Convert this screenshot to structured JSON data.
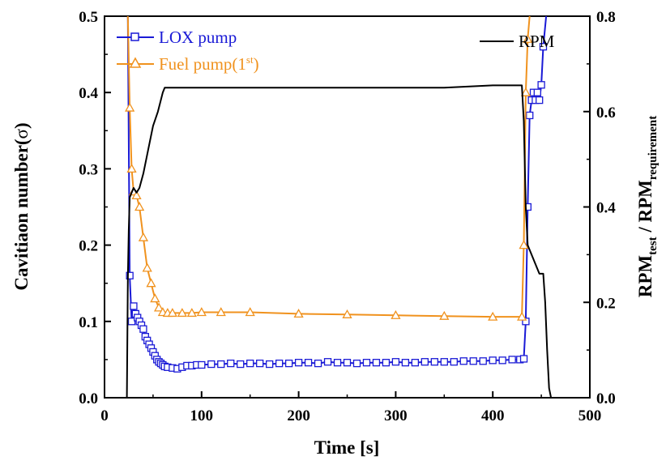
{
  "chart_data": {
    "type": "line",
    "x_axis": {
      "label": "Time [s]",
      "range": [
        0,
        500
      ],
      "ticks": [
        0,
        100,
        200,
        300,
        400,
        500
      ]
    },
    "y_left": {
      "label_main": "Cavitiaon number(",
      "label_symbol": "σ",
      "label_close": ")",
      "range": [
        0,
        0.5
      ],
      "ticks": [
        "0.0",
        "0.1",
        "0.2",
        "0.3",
        "0.4",
        "0.5"
      ]
    },
    "y_right": {
      "label_a": "RPM",
      "label_a_sub": "test",
      "label_sep": " / RPM",
      "label_b_sub": "requirement",
      "range": [
        0,
        0.8
      ],
      "ticks": [
        "0.0",
        "0.2",
        "0.4",
        "0.6",
        "0.8"
      ]
    },
    "legend": {
      "lox": "LOX pump",
      "fuel": "Fuel pump(1",
      "fuel_sup": "st",
      "fuel_close": ")",
      "rpm": "RPM"
    },
    "colors": {
      "lox": "#1a1ad6",
      "fuel": "#f0921e",
      "rpm": "#000000"
    },
    "series": [
      {
        "name": "LOX pump",
        "axis": "left",
        "marker": "square",
        "x": [
          24,
          26,
          28,
          30,
          32,
          34,
          36,
          38,
          40,
          42,
          44,
          46,
          48,
          50,
          52,
          54,
          56,
          58,
          60,
          62,
          65,
          70,
          75,
          80,
          85,
          90,
          95,
          100,
          110,
          120,
          130,
          140,
          150,
          160,
          170,
          180,
          190,
          200,
          210,
          220,
          230,
          240,
          250,
          260,
          270,
          280,
          290,
          300,
          310,
          320,
          330,
          340,
          350,
          360,
          370,
          380,
          390,
          400,
          410,
          420,
          428,
          432,
          434,
          436,
          438,
          440,
          442,
          444,
          446,
          448,
          450,
          452,
          455
        ],
        "y": [
          0.5,
          0.16,
          0.1,
          0.12,
          0.11,
          0.105,
          0.1,
          0.095,
          0.09,
          0.08,
          0.075,
          0.07,
          0.065,
          0.06,
          0.055,
          0.05,
          0.047,
          0.045,
          0.043,
          0.041,
          0.04,
          0.039,
          0.038,
          0.04,
          0.042,
          0.042,
          0.043,
          0.043,
          0.044,
          0.044,
          0.045,
          0.044,
          0.045,
          0.045,
          0.044,
          0.045,
          0.045,
          0.046,
          0.046,
          0.045,
          0.047,
          0.046,
          0.046,
          0.045,
          0.046,
          0.046,
          0.046,
          0.047,
          0.046,
          0.046,
          0.047,
          0.047,
          0.047,
          0.047,
          0.048,
          0.048,
          0.048,
          0.049,
          0.049,
          0.05,
          0.05,
          0.051,
          0.1,
          0.25,
          0.37,
          0.39,
          0.4,
          0.39,
          0.4,
          0.39,
          0.41,
          0.46,
          0.5
        ]
      },
      {
        "name": "Fuel pump(1st)",
        "axis": "left",
        "marker": "triangle",
        "x": [
          24,
          26,
          28,
          30,
          33,
          36,
          40,
          44,
          48,
          52,
          56,
          60,
          65,
          70,
          80,
          90,
          100,
          120,
          150,
          200,
          250,
          300,
          350,
          400,
          430,
          432,
          434,
          436,
          438
        ],
        "y": [
          0.5,
          0.38,
          0.3,
          0.27,
          0.265,
          0.25,
          0.21,
          0.17,
          0.15,
          0.13,
          0.118,
          0.112,
          0.111,
          0.111,
          0.111,
          0.111,
          0.112,
          0.112,
          0.112,
          0.11,
          0.109,
          0.108,
          0.107,
          0.106,
          0.106,
          0.2,
          0.4,
          0.47,
          0.5
        ]
      },
      {
        "name": "RPM",
        "axis": "right",
        "x": [
          23,
          24,
          25,
          26,
          28,
          30,
          33,
          36,
          40,
          45,
          50,
          55,
          60,
          62,
          70,
          100,
          150,
          200,
          250,
          300,
          350,
          400,
          425,
          430,
          432,
          434,
          436,
          438,
          440,
          444,
          448,
          450,
          452,
          454,
          456,
          458,
          460
        ],
        "y": [
          0.0,
          0.25,
          0.35,
          0.42,
          0.43,
          0.44,
          0.43,
          0.44,
          0.47,
          0.52,
          0.57,
          0.6,
          0.64,
          0.65,
          0.65,
          0.65,
          0.65,
          0.65,
          0.65,
          0.65,
          0.65,
          0.655,
          0.655,
          0.655,
          0.58,
          0.4,
          0.32,
          0.31,
          0.3,
          0.28,
          0.26,
          0.26,
          0.26,
          0.2,
          0.1,
          0.02,
          0.0
        ]
      }
    ]
  }
}
